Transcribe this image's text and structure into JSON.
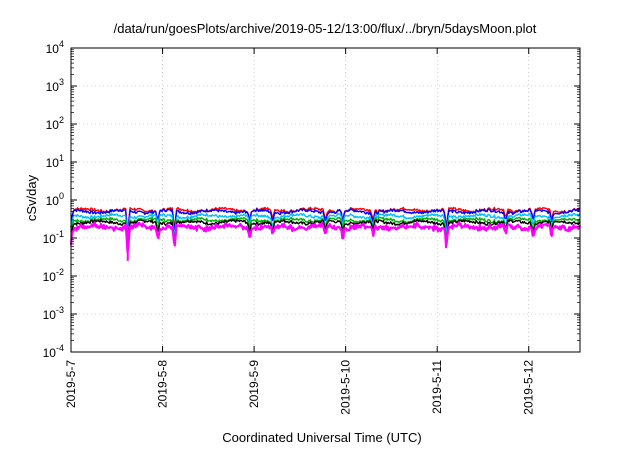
{
  "chart_data": {
    "type": "line",
    "title": "/data/run/goesPlots/archive/2019-05-12/13:00/flux/../bryn/5daysMoon.plot",
    "xlabel": "Coordinated Universal Time (UTC)",
    "ylabel": "cSv/day",
    "yscale": "log",
    "ylim": [
      0.0001,
      10000
    ],
    "y_ticks": [
      {
        "mantissa": "10",
        "exp": "-4",
        "value": 0.0001
      },
      {
        "mantissa": "10",
        "exp": "-3",
        "value": 0.001
      },
      {
        "mantissa": "10",
        "exp": "-2",
        "value": 0.01
      },
      {
        "mantissa": "10",
        "exp": "-1",
        "value": 0.1
      },
      {
        "mantissa": "10",
        "exp": "0",
        "value": 1
      },
      {
        "mantissa": "10",
        "exp": "1",
        "value": 10
      },
      {
        "mantissa": "10",
        "exp": "2",
        "value": 100
      },
      {
        "mantissa": "10",
        "exp": "3",
        "value": 1000
      },
      {
        "mantissa": "10",
        "exp": "4",
        "value": 10000
      }
    ],
    "x_range_days": [
      0,
      5.56
    ],
    "x_ticks": [
      {
        "label": "2019-5-7",
        "day": 0
      },
      {
        "label": "2019-5-8",
        "day": 1
      },
      {
        "label": "2019-5-9",
        "day": 2
      },
      {
        "label": "2019-5-10",
        "day": 3
      },
      {
        "label": "2019-5-11",
        "day": 4
      },
      {
        "label": "2019-5-12",
        "day": 5
      }
    ],
    "grid": true,
    "series": [
      {
        "color": "#ff0000",
        "level": 0.55
      },
      {
        "color": "#0000ff",
        "level": 0.5
      },
      {
        "color": "#00bfff",
        "level": 0.38
      },
      {
        "color": "#00b000",
        "level": 0.3
      },
      {
        "color": "#000000",
        "level": 0.26
      },
      {
        "color": "#ff00ff",
        "level": 0.2
      }
    ],
    "dips": [
      {
        "day": 0.0,
        "depth": 0.35
      },
      {
        "day": 0.62,
        "depth": 0.09
      },
      {
        "day": 0.95,
        "depth": 0.5
      },
      {
        "day": 1.13,
        "depth": 0.22
      },
      {
        "day": 1.95,
        "depth": 0.5
      },
      {
        "day": 2.2,
        "depth": 0.55
      },
      {
        "day": 2.78,
        "depth": 0.55
      },
      {
        "day": 2.97,
        "depth": 0.5
      },
      {
        "day": 3.3,
        "depth": 0.55
      },
      {
        "day": 4.1,
        "depth": 0.25
      },
      {
        "day": 4.75,
        "depth": 0.6
      },
      {
        "day": 5.05,
        "depth": 0.5
      },
      {
        "day": 5.25,
        "depth": 0.55
      }
    ]
  }
}
